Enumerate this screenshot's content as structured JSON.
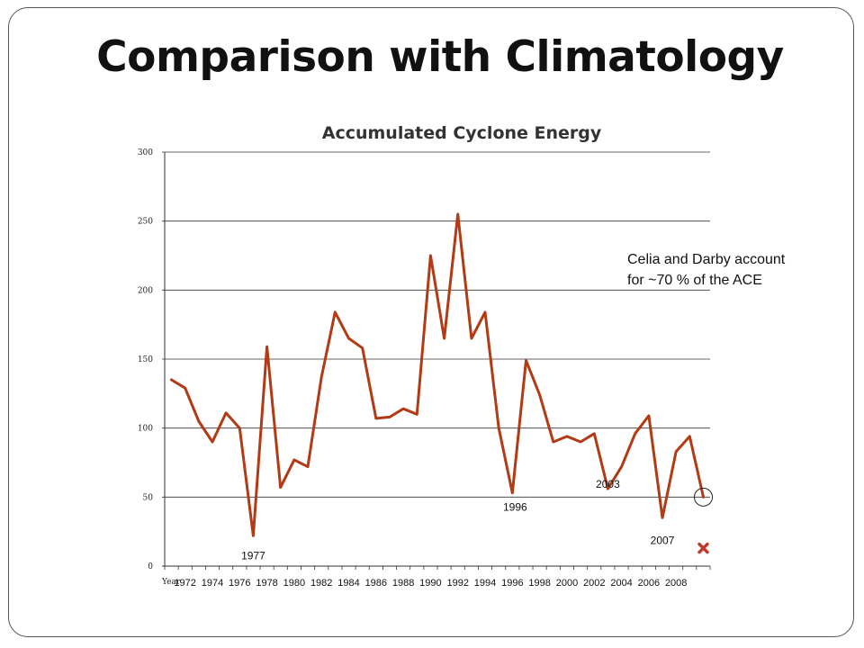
{
  "slide": {
    "title": "Comparison with Climatology",
    "note_lines": [
      "Celia and Darby account",
      "for ~70 % of the ACE"
    ]
  },
  "colors": {
    "series": "#B23A14",
    "marker": "#C0392B",
    "gridline": "#333333"
  },
  "chart_data": {
    "type": "line",
    "title": "Accumulated Cyclone Energy",
    "xlabel": "Year",
    "ylabel": "",
    "ylim": [
      0,
      300
    ],
    "yticks": [
      0,
      50,
      100,
      150,
      200,
      250,
      300
    ],
    "grid": true,
    "x": [
      1971,
      1972,
      1973,
      1974,
      1975,
      1976,
      1977,
      1978,
      1979,
      1980,
      1981,
      1982,
      1983,
      1984,
      1985,
      1986,
      1987,
      1988,
      1989,
      1990,
      1991,
      1992,
      1993,
      1994,
      1995,
      1996,
      1997,
      1998,
      1999,
      2000,
      2001,
      2002,
      2003,
      2004,
      2005,
      2006,
      2007,
      2008,
      2009,
      2010
    ],
    "xtick_labels": [
      "1972",
      "1974",
      "1976",
      "1978",
      "1980",
      "1982",
      "1984",
      "1986",
      "1988",
      "1990",
      "1992",
      "1994",
      "1996",
      "1998",
      "2000",
      "2002",
      "2004",
      "2006",
      "2008"
    ],
    "series": [
      {
        "values": [
          135,
          129,
          105,
          90,
          111,
          100,
          22,
          159,
          57,
          77,
          72,
          137,
          184,
          165,
          158,
          107,
          108,
          114,
          110,
          225,
          165,
          255,
          165,
          184,
          100,
          53,
          149,
          124,
          90,
          94,
          90,
          96,
          56,
          72,
          96,
          109,
          35,
          83,
          94,
          50
        ]
      }
    ],
    "annotations": [
      {
        "text": "1977",
        "x": 1977,
        "y": 22
      },
      {
        "text": "1996",
        "x": 1996,
        "y": 53
      },
      {
        "text": "2003",
        "x": 2003,
        "y": 56
      },
      {
        "text": "2007",
        "x": 2007,
        "y": 35
      }
    ],
    "highlight_circle": {
      "x": 2010,
      "y": 50
    },
    "marker_point": {
      "x": 2010,
      "y": 13,
      "symbol": "x"
    }
  }
}
